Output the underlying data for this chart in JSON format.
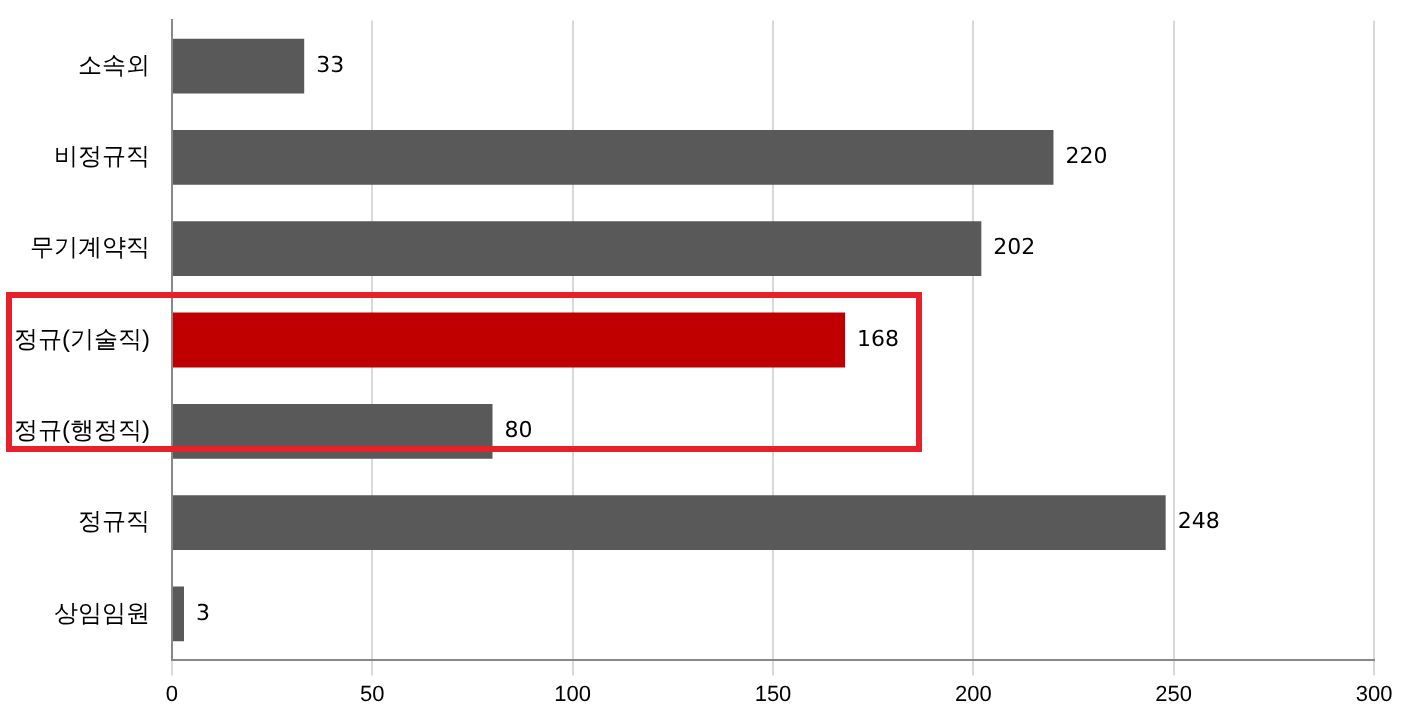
{
  "chart_data": {
    "type": "bar",
    "orientation": "horizontal",
    "categories": [
      "소속외",
      "비정규직",
      "무기계약직",
      "정규(기술직)",
      "정규(행정직)",
      "정규직",
      "상임임원"
    ],
    "values": [
      33,
      220,
      202,
      168,
      80,
      248,
      3
    ],
    "colors": [
      "#595959",
      "#595959",
      "#595959",
      "#c00000",
      "#595959",
      "#595959",
      "#595959"
    ],
    "xlim": [
      0,
      300
    ],
    "xticks": [
      0,
      50,
      100,
      150,
      200,
      250,
      300
    ],
    "grid": "x",
    "data_labels": true,
    "legend": false
  }
}
